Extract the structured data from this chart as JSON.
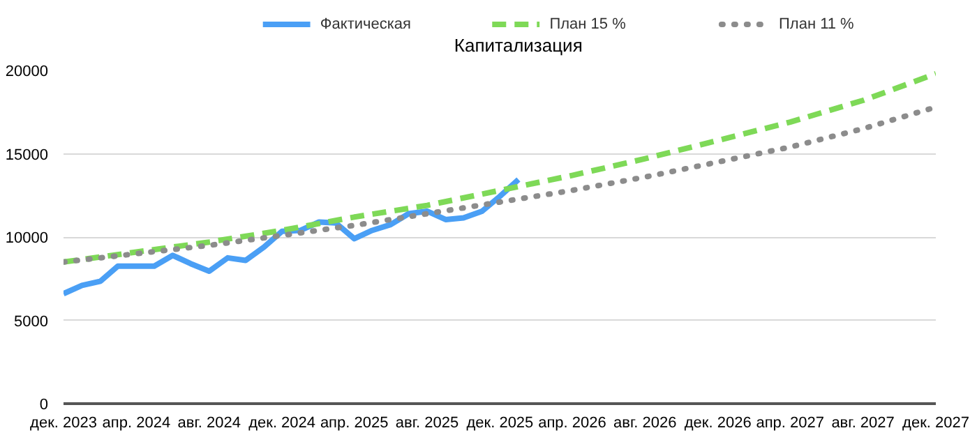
{
  "chart_data": {
    "type": "line",
    "title": "Капитализация",
    "x": [
      "2023-12",
      "2024-01",
      "2024-02",
      "2024-03",
      "2024-04",
      "2024-05",
      "2024-06",
      "2024-07",
      "2024-08",
      "2024-09",
      "2024-10",
      "2024-11",
      "2024-12",
      "2025-01",
      "2025-02",
      "2025-03",
      "2025-04",
      "2025-05",
      "2025-06",
      "2025-07",
      "2025-08",
      "2025-09",
      "2025-10",
      "2025-11",
      "2025-12",
      "2026-01"
    ],
    "series": [
      {
        "name": "Фактическая",
        "color": "#4a9ff5",
        "line_style": "solid",
        "values": [
          6600,
          7100,
          7350,
          8250,
          8250,
          8250,
          8900,
          8400,
          7950,
          8750,
          8600,
          9400,
          10350,
          10400,
          10900,
          10850,
          9900,
          10400,
          10750,
          11400,
          11550,
          11050,
          11150,
          11550,
          12450,
          13450
        ]
      },
      {
        "name": "План 15 %",
        "color": "#7ed957",
        "line_style": "dashed",
        "x": [
          "2023-12",
          "2024-04",
          "2024-08",
          "2024-12",
          "2025-04",
          "2025-08",
          "2025-12",
          "2026-04",
          "2026-08",
          "2026-12",
          "2027-04",
          "2027-08",
          "2027-12"
        ],
        "values": [
          8500,
          9100,
          9700,
          10400,
          11200,
          11900,
          12800,
          13700,
          14700,
          15800,
          16900,
          18200,
          19800
        ]
      },
      {
        "name": "План 11 %",
        "color": "#8c8c8c",
        "line_style": "dotted",
        "x": [
          "2023-12",
          "2024-04",
          "2024-08",
          "2024-12",
          "2025-04",
          "2025-08",
          "2025-12",
          "2026-04",
          "2026-08",
          "2026-12",
          "2027-04",
          "2027-08",
          "2027-12"
        ],
        "values": [
          8500,
          9000,
          9500,
          10100,
          10700,
          11400,
          12100,
          12800,
          13600,
          14500,
          15400,
          16500,
          17800
        ]
      }
    ],
    "xlim": [
      "2023-12",
      "2027-12"
    ],
    "xticks": [
      {
        "value": "2023-12",
        "label": "дек. 2023"
      },
      {
        "value": "2024-04",
        "label": "апр. 2024"
      },
      {
        "value": "2024-08",
        "label": "авг. 2024"
      },
      {
        "value": "2024-12",
        "label": "дек. 2024"
      },
      {
        "value": "2025-04",
        "label": "апр. 2025"
      },
      {
        "value": "2025-08",
        "label": "авг. 2025"
      },
      {
        "value": "2025-12",
        "label": "дек. 2025"
      },
      {
        "value": "2026-04",
        "label": "апр. 2026"
      },
      {
        "value": "2026-08",
        "label": "авг. 2026"
      },
      {
        "value": "2026-12",
        "label": "дек. 2026"
      },
      {
        "value": "2027-04",
        "label": "апр. 2027"
      },
      {
        "value": "2027-08",
        "label": "авг. 2027"
      },
      {
        "value": "2027-12",
        "label": "дек. 2027"
      }
    ],
    "ylim": [
      0,
      20000
    ],
    "yticks": [
      0,
      5000,
      10000,
      15000,
      20000
    ],
    "grid": "y",
    "legend": "top",
    "marker": "none"
  }
}
